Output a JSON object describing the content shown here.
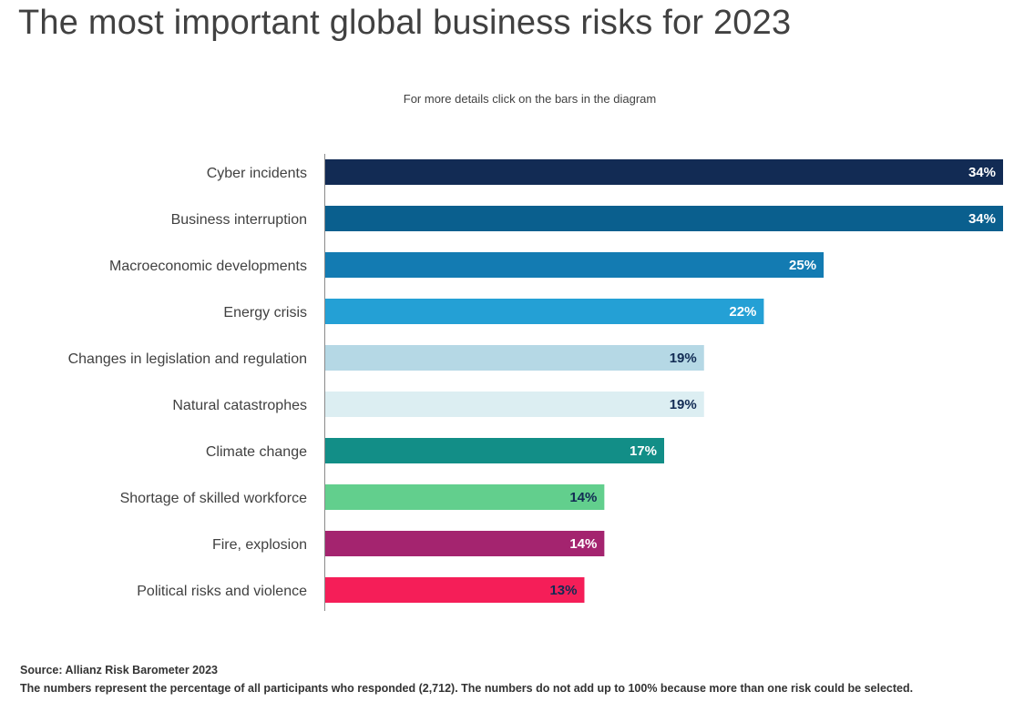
{
  "title": "The most important global business risks for 2023",
  "subtitle": "For more details click on the bars in the diagram",
  "source": "Source: Allianz Risk Barometer 2023",
  "note": "The numbers represent the percentage of all participants who responded (2,712). The numbers do not add up to 100% because more than one risk could be selected.",
  "chart_data": {
    "type": "bar",
    "orientation": "horizontal",
    "title": "The most important global business risks for 2023",
    "xlabel": "",
    "ylabel": "",
    "xlim": [
      0,
      34
    ],
    "grid": false,
    "legend": "none",
    "categories": [
      "Cyber incidents",
      "Business interruption",
      "Macroeconomic developments",
      "Energy crisis",
      "Changes in legislation and regulation",
      "Natural catastrophes",
      "Climate change",
      "Shortage of skilled workforce",
      "Fire, explosion",
      "Political risks and violence"
    ],
    "values": [
      34,
      34,
      25,
      22,
      19,
      19,
      17,
      14,
      14,
      13
    ],
    "value_labels": [
      "34%",
      "34%",
      "25%",
      "22%",
      "19%",
      "19%",
      "17%",
      "14%",
      "14%",
      "13%"
    ],
    "bar_colors": [
      "#122b54",
      "#0a5f8e",
      "#137bb2",
      "#24a0d5",
      "#b5d8e5",
      "#dceef2",
      "#128e87",
      "#62cf8d",
      "#a4246f",
      "#f51e58"
    ],
    "label_colors": [
      "#ffffff",
      "#ffffff",
      "#ffffff",
      "#ffffff",
      "#122b54",
      "#122b54",
      "#ffffff",
      "#122b54",
      "#ffffff",
      "#122b54"
    ]
  }
}
